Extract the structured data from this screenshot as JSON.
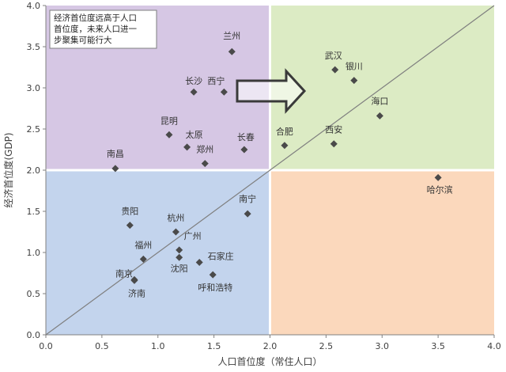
{
  "chart_data": {
    "type": "scatter",
    "title": "",
    "xlabel": "人口首位度（常住人口）",
    "ylabel": "经济首位度(GDP)",
    "xlim": [
      0.0,
      4.0
    ],
    "ylim": [
      0.0,
      4.0
    ],
    "xticks": [
      "0.0",
      "0.5",
      "1.0",
      "1.5",
      "2.0",
      "2.5",
      "3.0",
      "3.5",
      "4.0"
    ],
    "yticks": [
      "0.0",
      "0.5",
      "1.0",
      "1.5",
      "2.0",
      "2.5",
      "3.0",
      "3.5",
      "4.0"
    ],
    "grid": false,
    "quadrant_split": {
      "x": 2.0,
      "y": 2.0
    },
    "quadrant_colors": {
      "top_left": "#d6c7e4",
      "top_right": "#dcebc4",
      "bottom_left": "#c3d4ed",
      "bottom_right": "#fbd8bc"
    },
    "marker_color": "#4a4a4a",
    "diagonal_line": {
      "from": [
        0,
        0
      ],
      "to": [
        4,
        4
      ],
      "color": "#7f7f7f"
    },
    "annotation": {
      "lines": [
        "经济首位度远高于人口",
        "首位度，未来人口进一",
        "步聚集可能行大"
      ]
    },
    "arrow": "right-arrow-outline",
    "points": [
      {
        "name": "兰州",
        "x": 1.66,
        "y": 3.44
      },
      {
        "name": "长沙",
        "x": 1.32,
        "y": 2.95
      },
      {
        "name": "西宁",
        "x": 1.59,
        "y": 2.95
      },
      {
        "name": "昆明",
        "x": 1.1,
        "y": 2.43
      },
      {
        "name": "太原",
        "x": 1.26,
        "y": 2.28
      },
      {
        "name": "长春",
        "x": 1.77,
        "y": 2.25
      },
      {
        "name": "郑州",
        "x": 1.42,
        "y": 2.08
      },
      {
        "name": "南昌",
        "x": 0.62,
        "y": 2.02
      },
      {
        "name": "武汉",
        "x": 2.58,
        "y": 3.22
      },
      {
        "name": "银川",
        "x": 2.75,
        "y": 3.09
      },
      {
        "name": "海口",
        "x": 2.98,
        "y": 2.66
      },
      {
        "name": "合肥",
        "x": 2.13,
        "y": 2.3
      },
      {
        "name": "西安",
        "x": 2.57,
        "y": 2.32
      },
      {
        "name": "哈尔滨",
        "x": 3.5,
        "y": 1.91
      },
      {
        "name": "南宁",
        "x": 1.8,
        "y": 1.47
      },
      {
        "name": "贵阳",
        "x": 0.75,
        "y": 1.33
      },
      {
        "name": "杭州",
        "x": 1.16,
        "y": 1.25
      },
      {
        "name": "福州",
        "x": 0.87,
        "y": 0.92
      },
      {
        "name": "广州",
        "x": 1.19,
        "y": 1.03
      },
      {
        "name": "沈阳",
        "x": 1.19,
        "y": 0.94
      },
      {
        "name": "石家庄",
        "x": 1.37,
        "y": 0.88
      },
      {
        "name": "南京",
        "x": 0.79,
        "y": 0.67
      },
      {
        "name": "呼和浩特",
        "x": 1.49,
        "y": 0.73
      },
      {
        "name": "济南",
        "x": 0.79,
        "y": 0.66
      }
    ]
  }
}
